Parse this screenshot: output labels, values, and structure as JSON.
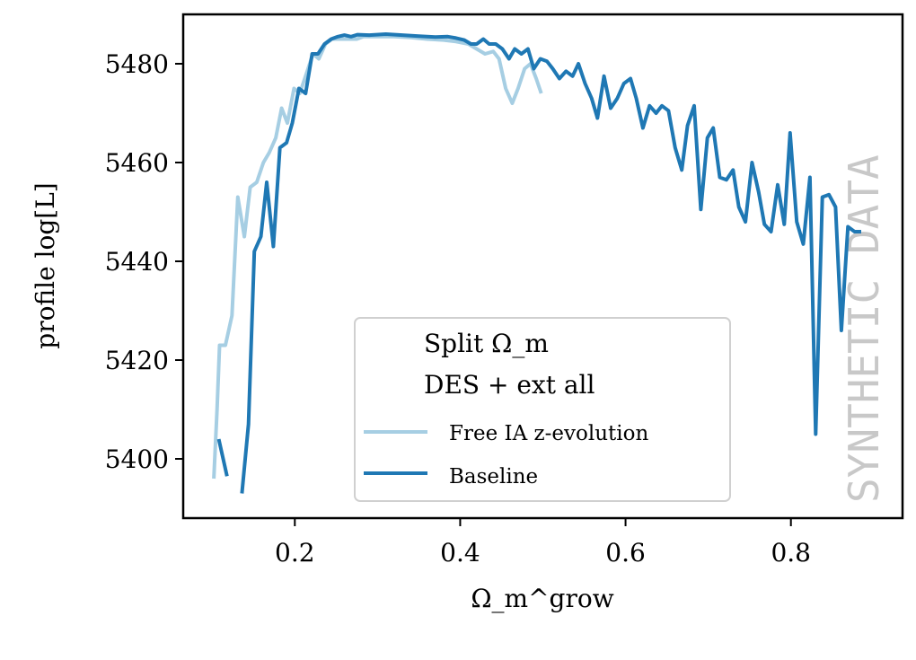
{
  "chart_data": {
    "type": "line",
    "xlabel": "Ω_m^grow",
    "ylabel": "profile log[L]",
    "xlim": [
      0.065,
      0.935
    ],
    "ylim": [
      5388,
      5490
    ],
    "xticks": [
      0.2,
      0.4,
      0.6,
      0.8
    ],
    "xtick_labels": [
      "0.2",
      "0.4",
      "0.6",
      "0.8"
    ],
    "yticks": [
      5400,
      5420,
      5440,
      5460,
      5480
    ],
    "ytick_labels": [
      "5400",
      "5420",
      "5440",
      "5460",
      "5480"
    ],
    "legend": {
      "position": "lower-center",
      "title_lines": [
        "Split Ω_m",
        "DES + ext all"
      ],
      "entries": [
        "Free IA z-evolution",
        "Baseline"
      ]
    },
    "watermark": "SYNTHETIC DATA",
    "series": [
      {
        "name": "Free IA z-evolution",
        "color": "#a6cee3",
        "segments": [
          [
            [
              0.102,
              5396
            ],
            [
              0.106,
              5410
            ],
            [
              0.109,
              5423
            ],
            [
              0.116,
              5423
            ],
            [
              0.124,
              5429
            ],
            [
              0.131,
              5453
            ],
            [
              0.139,
              5445
            ],
            [
              0.146,
              5455
            ],
            [
              0.154,
              5456
            ],
            [
              0.162,
              5460
            ],
            [
              0.169,
              5462
            ],
            [
              0.177,
              5465
            ],
            [
              0.184,
              5471
            ],
            [
              0.191,
              5468
            ],
            [
              0.199,
              5475
            ],
            [
              0.206,
              5474
            ],
            [
              0.214,
              5478
            ],
            [
              0.222,
              5482
            ],
            [
              0.229,
              5481
            ],
            [
              0.237,
              5484
            ],
            [
              0.245,
              5485
            ],
            [
              0.252,
              5485
            ],
            [
              0.26,
              5485
            ],
            [
              0.268,
              5485
            ],
            [
              0.275,
              5485
            ],
            [
              0.283,
              5485.5
            ],
            [
              0.3,
              5485.5
            ],
            [
              0.32,
              5485.5
            ],
            [
              0.34,
              5485.3
            ],
            [
              0.36,
              5485
            ],
            [
              0.38,
              5484.8
            ],
            [
              0.395,
              5484.5
            ],
            [
              0.41,
              5484
            ],
            [
              0.42,
              5483
            ],
            [
              0.43,
              5482
            ],
            [
              0.44,
              5482.5
            ],
            [
              0.447,
              5481
            ],
            [
              0.455,
              5475
            ],
            [
              0.463,
              5472
            ],
            [
              0.47,
              5475
            ],
            [
              0.478,
              5479
            ],
            [
              0.485,
              5480
            ],
            [
              0.492,
              5477
            ],
            [
              0.498,
              5474
            ]
          ]
        ]
      },
      {
        "name": "Baseline",
        "color": "#1f78b4",
        "segments": [
          [
            [
              0.108,
              5404
            ],
            [
              0.118,
              5396.5
            ]
          ],
          [
            [
              0.136,
              5393
            ],
            [
              0.144,
              5407
            ],
            [
              0.151,
              5442
            ],
            [
              0.159,
              5445
            ],
            [
              0.166,
              5456
            ],
            [
              0.174,
              5443
            ],
            [
              0.182,
              5463
            ],
            [
              0.19,
              5464
            ],
            [
              0.197,
              5468
            ],
            [
              0.205,
              5475
            ],
            [
              0.213,
              5474
            ],
            [
              0.221,
              5482
            ],
            [
              0.228,
              5482
            ],
            [
              0.236,
              5484
            ],
            [
              0.244,
              5485
            ],
            [
              0.252,
              5485.5
            ],
            [
              0.26,
              5485.8
            ],
            [
              0.268,
              5485.5
            ],
            [
              0.276,
              5485.9
            ],
            [
              0.29,
              5485.8
            ],
            [
              0.31,
              5486
            ],
            [
              0.33,
              5485.8
            ],
            [
              0.35,
              5485.6
            ],
            [
              0.37,
              5485.4
            ],
            [
              0.385,
              5485.5
            ],
            [
              0.395,
              5485.2
            ],
            [
              0.405,
              5484.8
            ],
            [
              0.413,
              5484
            ],
            [
              0.42,
              5484
            ],
            [
              0.428,
              5485
            ],
            [
              0.435,
              5484
            ],
            [
              0.443,
              5484
            ],
            [
              0.451,
              5483
            ],
            [
              0.459,
              5481
            ],
            [
              0.466,
              5483
            ],
            [
              0.474,
              5482
            ],
            [
              0.482,
              5483
            ],
            [
              0.489,
              5479
            ],
            [
              0.497,
              5481
            ],
            [
              0.505,
              5480.5
            ],
            [
              0.512,
              5479
            ],
            [
              0.52,
              5477
            ],
            [
              0.528,
              5478.5
            ],
            [
              0.536,
              5477.5
            ],
            [
              0.543,
              5480
            ],
            [
              0.551,
              5476
            ],
            [
              0.559,
              5473
            ],
            [
              0.566,
              5469
            ],
            [
              0.574,
              5477.5
            ],
            [
              0.582,
              5471
            ],
            [
              0.59,
              5473
            ],
            [
              0.598,
              5476
            ],
            [
              0.606,
              5477
            ],
            [
              0.613,
              5473
            ],
            [
              0.621,
              5467
            ],
            [
              0.629,
              5471.5
            ],
            [
              0.637,
              5470
            ],
            [
              0.644,
              5471.5
            ],
            [
              0.652,
              5470.5
            ],
            [
              0.66,
              5463
            ],
            [
              0.668,
              5458.5
            ],
            [
              0.675,
              5467.5
            ],
            [
              0.683,
              5471.5
            ],
            [
              0.691,
              5450.5
            ],
            [
              0.699,
              5465
            ],
            [
              0.706,
              5467
            ],
            [
              0.714,
              5457
            ],
            [
              0.722,
              5456.5
            ],
            [
              0.73,
              5458.5
            ],
            [
              0.737,
              5451
            ],
            [
              0.745,
              5448
            ],
            [
              0.753,
              5460
            ],
            [
              0.761,
              5454
            ],
            [
              0.768,
              5447.5
            ],
            [
              0.776,
              5446
            ],
            [
              0.784,
              5455.5
            ],
            [
              0.792,
              5447.5
            ],
            [
              0.799,
              5466
            ],
            [
              0.807,
              5448
            ],
            [
              0.815,
              5443.5
            ],
            [
              0.823,
              5457
            ],
            [
              0.83,
              5405
            ],
            [
              0.838,
              5453
            ],
            [
              0.846,
              5453.5
            ],
            [
              0.854,
              5451
            ],
            [
              0.861,
              5426
            ],
            [
              0.869,
              5447
            ],
            [
              0.877,
              5446
            ],
            [
              0.885,
              5446
            ]
          ]
        ]
      }
    ]
  }
}
